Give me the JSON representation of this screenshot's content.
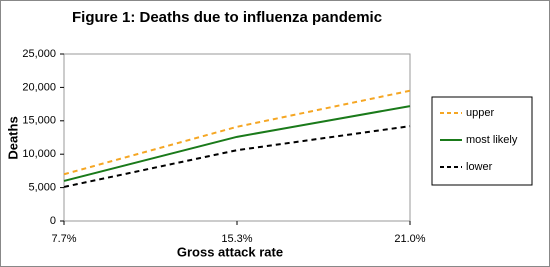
{
  "chart_data": {
    "type": "line",
    "title": "Figure 1: Deaths due to influenza pandemic",
    "x_label": "Gross attack rate",
    "y_label": "Deaths",
    "categories": [
      "7.7%",
      "15.3%",
      "21.0%"
    ],
    "series": [
      {
        "name": "upper",
        "color": "#f5a623",
        "dash": true,
        "values": [
          7000,
          14100,
          19500
        ]
      },
      {
        "name": "most likely",
        "color": "#1a7a1a",
        "dash": false,
        "values": [
          6000,
          12600,
          17200
        ]
      },
      {
        "name": "lower",
        "color": "#000000",
        "dash": true,
        "values": [
          5100,
          10600,
          14200
        ]
      }
    ],
    "ylim": [
      0,
      25000
    ],
    "yticks": [
      0,
      {
        "value": 5000,
        "label": "5,000"
      },
      {
        "value": 10000,
        "label": "10,000"
      },
      {
        "value": 15000,
        "label": "15,000"
      },
      {
        "value": 20000,
        "label": "20,000"
      },
      {
        "value": 25000,
        "label": "25,000"
      }
    ],
    "grid": false,
    "legend": "right"
  }
}
